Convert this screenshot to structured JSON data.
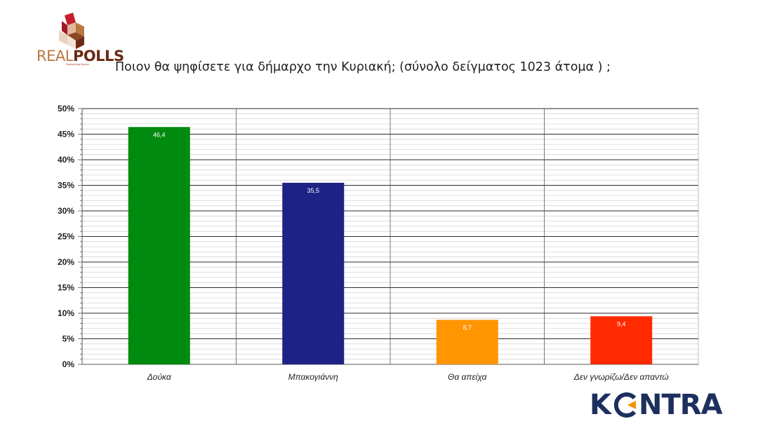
{
  "header": {
    "logo_left": {
      "real": "REAL",
      "polls": "POLLS",
      "tagline": "Researching Opinion"
    },
    "question": "Ποιον θα ψηφίσετε για δήμαρχο την Κυριακή; (σύνολο δείγματος 1023 άτομα ) ;"
  },
  "footer": {
    "logo_right": {
      "k": "K",
      "ntra": "NTRA",
      "accent_color": "#f39200",
      "text_color": "#1d2f5e"
    }
  },
  "chart_data": {
    "type": "bar",
    "categories": [
      "Δούκα",
      "Μπακογιάννη",
      "Θα απείχα",
      "Δεν γνωρίζω/Δεν απαντώ"
    ],
    "values": [
      46.4,
      35.5,
      8.7,
      9.4
    ],
    "value_labels": [
      "46,4",
      "35,5",
      "8,7",
      "9,4"
    ],
    "colors": [
      "#008a0e",
      "#1c2286",
      "#ff9500",
      "#ff2a00"
    ],
    "ylim": [
      0,
      50
    ],
    "yticks": [
      0,
      5,
      10,
      15,
      20,
      25,
      30,
      35,
      40,
      45,
      50
    ],
    "ytick_labels": [
      "0%",
      "5%",
      "10%",
      "15%",
      "20%",
      "25%",
      "30%",
      "35%",
      "40%",
      "45%",
      "50%"
    ],
    "grid": true,
    "legend": "none"
  }
}
